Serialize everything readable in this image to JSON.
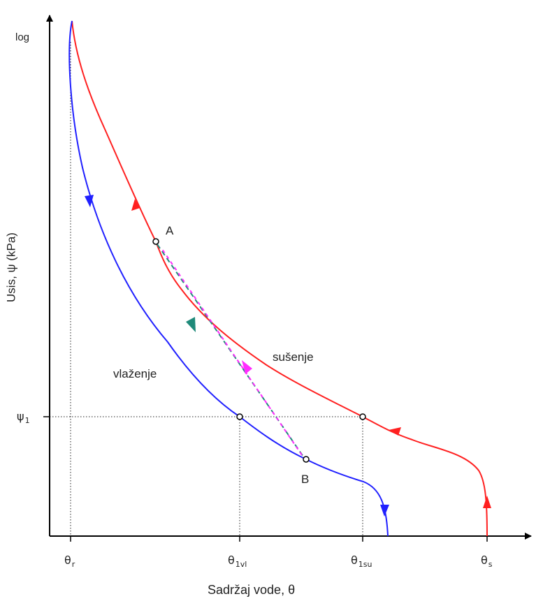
{
  "axes": {
    "y_top_label": "log",
    "y_title": "Usis, ψ (kPa)",
    "x_title": "Sadržaj vode, θ",
    "psi1": {
      "symbol": "ψ",
      "sub": "1"
    }
  },
  "x_ticks": [
    {
      "symbol": "θ",
      "sub": "r"
    },
    {
      "symbol": "θ",
      "sub": "1vl"
    },
    {
      "symbol": "θ",
      "sub": "1su"
    },
    {
      "symbol": "θ",
      "sub": "s"
    }
  ],
  "curves": {
    "drying": {
      "label": "sušenje",
      "color": "#ff2020"
    },
    "wetting": {
      "label": "vlaženje",
      "color": "#2020ff"
    }
  },
  "points": {
    "A": "A",
    "B": "B"
  },
  "scanning_paths": {
    "A_to_B_color": "#1f8a7a",
    "B_to_A_color": "#ff2bff"
  },
  "grid_line_color": "#222222"
}
